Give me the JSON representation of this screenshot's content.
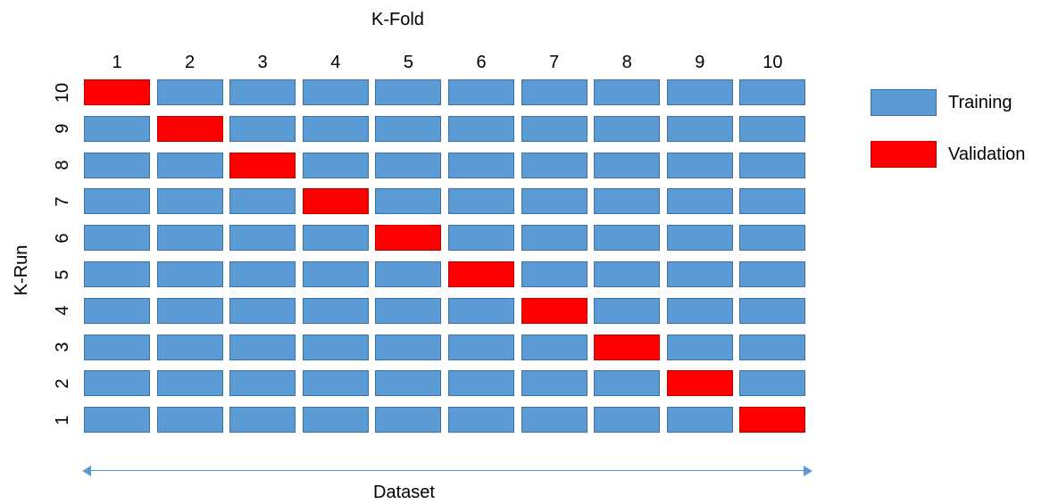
{
  "title": "K-Fold",
  "y_axis_label": "K-Run",
  "x_axis_label": "Dataset",
  "column_labels": [
    "1",
    "2",
    "3",
    "4",
    "5",
    "6",
    "7",
    "8",
    "9",
    "10"
  ],
  "rows": [
    {
      "label": "10",
      "validation_fold": 1
    },
    {
      "label": "9",
      "validation_fold": 2
    },
    {
      "label": "8",
      "validation_fold": 3
    },
    {
      "label": "7",
      "validation_fold": 4
    },
    {
      "label": "6",
      "validation_fold": 5
    },
    {
      "label": "5",
      "validation_fold": 6
    },
    {
      "label": "4",
      "validation_fold": 7
    },
    {
      "label": "3",
      "validation_fold": 8
    },
    {
      "label": "2",
      "validation_fold": 9
    },
    {
      "label": "1",
      "validation_fold": 10
    }
  ],
  "legend": {
    "training": {
      "label": "Training",
      "color": "#5b9bd5"
    },
    "validation": {
      "label": "Validation",
      "color": "#ff0000"
    }
  }
}
